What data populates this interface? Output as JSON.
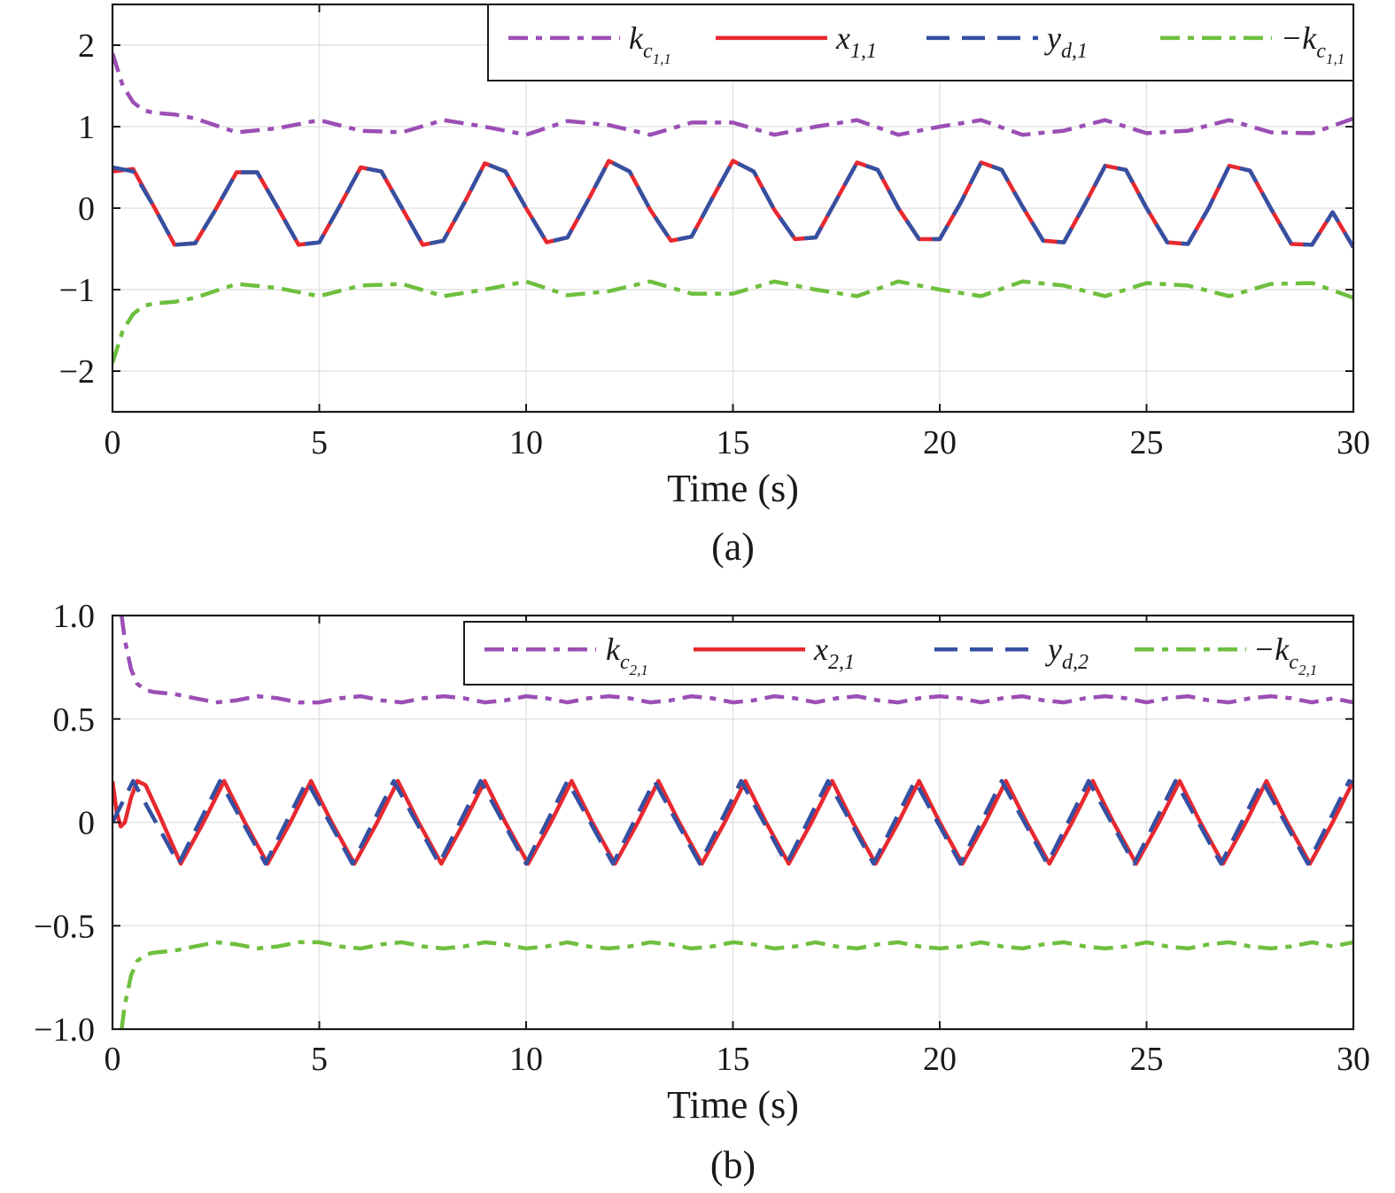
{
  "chart_data": [
    {
      "type": "line",
      "panel_label": "(a)",
      "xlabel": "Time (s)",
      "ylabel": "",
      "xlim": [
        0,
        30
      ],
      "ylim": [
        -2.5,
        2.5
      ],
      "xticks": [
        0,
        5,
        10,
        15,
        20,
        25,
        30
      ],
      "yticks": [
        -2,
        -1,
        0,
        1,
        2
      ],
      "xtick_labels": [
        "0",
        "5",
        "10",
        "15",
        "20",
        "25",
        "30"
      ],
      "ytick_labels": [
        "−2",
        "−1",
        "0",
        "1",
        "2"
      ],
      "grid": true,
      "legend_position": "top-right",
      "series": [
        {
          "name": "k_{c_{1,1}}",
          "legend": {
            "base": "k",
            "sub": "c",
            "subsub": "1,1",
            "prefix": ""
          },
          "color": "#9b4fb5",
          "style": "dashdot",
          "x": [
            0,
            0.25,
            0.5,
            0.75,
            1,
            1.5,
            2,
            3,
            4,
            5,
            6,
            7,
            8,
            9,
            10,
            11,
            12,
            13,
            14,
            15,
            16,
            17,
            18,
            19,
            20,
            21,
            22,
            23,
            24,
            25,
            26,
            27,
            28,
            29,
            30
          ],
          "y": [
            1.9,
            1.5,
            1.3,
            1.2,
            1.17,
            1.15,
            1.1,
            0.93,
            0.98,
            1.08,
            0.95,
            0.93,
            1.08,
            1.0,
            0.9,
            1.07,
            1.02,
            0.9,
            1.05,
            1.05,
            0.9,
            1.0,
            1.08,
            0.9,
            1.0,
            1.08,
            0.9,
            0.95,
            1.08,
            0.92,
            0.95,
            1.08,
            0.93,
            0.92,
            1.1
          ]
        },
        {
          "name": "x_{1,1}",
          "legend": {
            "base": "x",
            "sub": "1,1",
            "subsub": "",
            "prefix": ""
          },
          "color": "#e8282f",
          "style": "solid",
          "x": [
            0,
            0.5,
            1,
            1.5,
            2,
            2.5,
            3,
            3.5,
            4,
            4.5,
            5,
            5.5,
            6,
            6.5,
            7,
            7.5,
            8,
            8.5,
            9,
            9.5,
            10,
            10.5,
            11,
            11.5,
            12,
            12.5,
            13,
            13.5,
            14,
            14.5,
            15,
            15.5,
            16,
            16.5,
            17,
            17.5,
            18,
            18.5,
            19,
            19.5,
            20,
            20.5,
            21,
            21.5,
            22,
            22.5,
            23,
            23.5,
            24,
            24.5,
            25,
            25.5,
            26,
            26.5,
            27,
            27.5,
            28,
            28.5,
            29,
            29.5,
            30
          ],
          "y": [
            0.45,
            0.48,
            0.02,
            -0.45,
            -0.43,
            -0.01,
            0.44,
            0.44,
            0.0,
            -0.45,
            -0.42,
            0.03,
            0.5,
            0.45,
            0.0,
            -0.45,
            -0.4,
            0.06,
            0.55,
            0.45,
            0.0,
            -0.42,
            -0.36,
            0.1,
            0.58,
            0.45,
            -0.02,
            -0.4,
            -0.35,
            0.12,
            0.58,
            0.45,
            -0.02,
            -0.38,
            -0.36,
            0.1,
            0.56,
            0.47,
            0.0,
            -0.38,
            -0.38,
            0.06,
            0.56,
            0.47,
            0.02,
            -0.4,
            -0.42,
            0.04,
            0.52,
            0.47,
            0.0,
            -0.42,
            -0.44,
            0.0,
            0.52,
            0.46,
            0.0,
            -0.44,
            -0.45,
            -0.05,
            -0.48
          ]
        },
        {
          "name": "y_{d,1}",
          "legend": {
            "base": "y",
            "sub": "d,1",
            "subsub": "",
            "prefix": ""
          },
          "color": "#3450a2",
          "style": "dashed",
          "x": [
            0,
            0.5,
            1,
            1.5,
            2,
            2.5,
            3,
            3.5,
            4,
            4.5,
            5,
            5.5,
            6,
            6.5,
            7,
            7.5,
            8,
            8.5,
            9,
            9.5,
            10,
            10.5,
            11,
            11.5,
            12,
            12.5,
            13,
            13.5,
            14,
            14.5,
            15,
            15.5,
            16,
            16.5,
            17,
            17.5,
            18,
            18.5,
            19,
            19.5,
            20,
            20.5,
            21,
            21.5,
            22,
            22.5,
            23,
            23.5,
            24,
            24.5,
            25,
            25.5,
            26,
            26.5,
            27,
            27.5,
            28,
            28.5,
            29,
            29.5,
            30
          ],
          "y": [
            0.5,
            0.45,
            0.02,
            -0.45,
            -0.43,
            -0.01,
            0.44,
            0.44,
            0.0,
            -0.45,
            -0.42,
            0.03,
            0.5,
            0.45,
            0.0,
            -0.45,
            -0.4,
            0.06,
            0.55,
            0.45,
            0.0,
            -0.42,
            -0.36,
            0.1,
            0.58,
            0.45,
            -0.02,
            -0.4,
            -0.35,
            0.12,
            0.58,
            0.45,
            -0.02,
            -0.38,
            -0.36,
            0.1,
            0.56,
            0.47,
            0.0,
            -0.38,
            -0.38,
            0.06,
            0.56,
            0.47,
            0.02,
            -0.4,
            -0.42,
            0.04,
            0.52,
            0.47,
            0.0,
            -0.42,
            -0.44,
            0.0,
            0.52,
            0.46,
            0.0,
            -0.44,
            -0.45,
            -0.05,
            -0.48
          ]
        },
        {
          "name": "−k_{c_{1,1}}",
          "legend": {
            "base": "k",
            "sub": "c",
            "subsub": "1,1",
            "prefix": "−"
          },
          "color": "#6fbf3f",
          "style": "dashdot",
          "x": [
            0,
            0.25,
            0.5,
            0.75,
            1,
            1.5,
            2,
            3,
            4,
            5,
            6,
            7,
            8,
            9,
            10,
            11,
            12,
            13,
            14,
            15,
            16,
            17,
            18,
            19,
            20,
            21,
            22,
            23,
            24,
            25,
            26,
            27,
            28,
            29,
            30
          ],
          "y": [
            -1.9,
            -1.5,
            -1.3,
            -1.2,
            -1.17,
            -1.15,
            -1.1,
            -0.93,
            -0.98,
            -1.08,
            -0.95,
            -0.93,
            -1.08,
            -1.0,
            -0.9,
            -1.07,
            -1.02,
            -0.9,
            -1.05,
            -1.05,
            -0.9,
            -1.0,
            -1.08,
            -0.9,
            -1.0,
            -1.08,
            -0.9,
            -0.95,
            -1.08,
            -0.92,
            -0.95,
            -1.08,
            -0.93,
            -0.92,
            -1.1
          ]
        }
      ]
    },
    {
      "type": "line",
      "panel_label": "(b)",
      "xlabel": "Time (s)",
      "ylabel": "",
      "xlim": [
        0,
        30
      ],
      "ylim": [
        -1.0,
        1.0
      ],
      "xticks": [
        0,
        5,
        10,
        15,
        20,
        25,
        30
      ],
      "yticks": [
        -1.0,
        -0.5,
        0,
        0.5,
        1.0
      ],
      "xtick_labels": [
        "0",
        "5",
        "10",
        "15",
        "20",
        "25",
        "30"
      ],
      "ytick_labels": [
        "−1.0",
        "−0.5",
        "0",
        "0.5",
        "1.0"
      ],
      "grid": true,
      "legend_position": "top-right",
      "series": [
        {
          "name": "k_{c_{2,1}}",
          "legend": {
            "base": "k",
            "sub": "c",
            "subsub": "2,1",
            "prefix": ""
          },
          "color": "#9b4fb5",
          "style": "dashdot",
          "x": [
            0.22,
            0.3,
            0.45,
            0.6,
            0.8,
            1,
            1.5,
            2,
            2.5,
            3,
            3.5,
            4,
            4.5,
            5,
            5.5,
            6,
            6.5,
            7,
            7.5,
            8,
            8.5,
            9,
            9.5,
            10,
            10.5,
            11,
            11.5,
            12,
            12.5,
            13,
            13.5,
            14,
            14.5,
            15,
            15.5,
            16,
            16.5,
            17,
            17.5,
            18,
            18.5,
            19,
            19.5,
            20,
            20.5,
            21,
            21.5,
            22,
            22.5,
            23,
            23.5,
            24,
            24.5,
            25,
            25.5,
            26,
            26.5,
            27,
            27.5,
            28,
            28.5,
            29,
            29.5,
            30
          ],
          "y": [
            1.0,
            0.88,
            0.74,
            0.67,
            0.64,
            0.63,
            0.62,
            0.6,
            0.58,
            0.59,
            0.61,
            0.6,
            0.58,
            0.58,
            0.6,
            0.61,
            0.59,
            0.58,
            0.6,
            0.61,
            0.6,
            0.58,
            0.59,
            0.61,
            0.6,
            0.58,
            0.6,
            0.61,
            0.6,
            0.58,
            0.59,
            0.61,
            0.6,
            0.58,
            0.59,
            0.61,
            0.6,
            0.58,
            0.6,
            0.61,
            0.59,
            0.58,
            0.6,
            0.61,
            0.6,
            0.58,
            0.6,
            0.61,
            0.59,
            0.58,
            0.6,
            0.61,
            0.6,
            0.58,
            0.6,
            0.61,
            0.59,
            0.58,
            0.6,
            0.61,
            0.6,
            0.58,
            0.6,
            0.58
          ]
        },
        {
          "name": "x_{2,1}",
          "legend": {
            "base": "x",
            "sub": "2,1",
            "subsub": "",
            "prefix": ""
          },
          "color": "#e8282f",
          "style": "solid",
          "x": [
            0,
            0.1,
            0.2,
            0.3,
            0.45,
            0.6,
            0.8,
            1.1,
            1.65,
            2.2,
            2.7,
            3.2,
            3.75,
            4.3,
            4.8,
            5.3,
            5.85,
            6.4,
            6.9,
            7.4,
            7.95,
            8.5,
            9.0,
            9.5,
            10.05,
            10.6,
            11.1,
            11.6,
            12.15,
            12.7,
            13.2,
            13.7,
            14.25,
            14.8,
            15.3,
            15.8,
            16.35,
            16.9,
            17.4,
            17.9,
            18.45,
            19.0,
            19.5,
            20.0,
            20.55,
            21.1,
            21.6,
            22.1,
            22.65,
            23.2,
            23.7,
            24.2,
            24.75,
            25.3,
            25.8,
            26.3,
            26.85,
            27.4,
            27.9,
            28.4,
            28.95,
            29.5,
            30
          ],
          "y": [
            0.2,
            0.05,
            -0.02,
            0.0,
            0.12,
            0.2,
            0.18,
            0.05,
            -0.2,
            0.0,
            0.2,
            0.0,
            -0.2,
            0.0,
            0.2,
            0.0,
            -0.2,
            0.0,
            0.2,
            0.0,
            -0.2,
            0.0,
            0.2,
            0.0,
            -0.2,
            0.0,
            0.2,
            0.0,
            -0.2,
            0.0,
            0.2,
            0.0,
            -0.2,
            0.0,
            0.2,
            0.0,
            -0.2,
            0.0,
            0.2,
            0.0,
            -0.2,
            0.0,
            0.2,
            0.0,
            -0.2,
            0.0,
            0.2,
            0.0,
            -0.2,
            0.0,
            0.2,
            0.0,
            -0.2,
            0.0,
            0.2,
            0.0,
            -0.2,
            0.0,
            0.2,
            0.0,
            -0.2,
            0.0,
            0.2
          ]
        },
        {
          "name": "y_{d,2}",
          "legend": {
            "base": "y",
            "sub": "d,2",
            "subsub": "",
            "prefix": ""
          },
          "color": "#3450a2",
          "style": "dashed",
          "x": [
            0,
            0.5,
            1.05,
            1.6,
            2.1,
            2.6,
            3.15,
            3.7,
            4.2,
            4.7,
            5.25,
            5.8,
            6.3,
            6.8,
            7.35,
            7.9,
            8.4,
            8.9,
            9.45,
            10.0,
            10.5,
            11.0,
            11.55,
            12.1,
            12.6,
            13.1,
            13.65,
            14.2,
            14.7,
            15.2,
            15.75,
            16.3,
            16.8,
            17.3,
            17.85,
            18.4,
            18.9,
            19.4,
            19.95,
            20.5,
            21.0,
            21.5,
            22.05,
            22.6,
            23.1,
            23.6,
            24.15,
            24.7,
            25.2,
            25.7,
            26.25,
            26.8,
            27.3,
            27.8,
            28.35,
            28.9,
            29.4,
            29.9,
            30
          ],
          "y": [
            0.0,
            0.2,
            0.0,
            -0.2,
            0.0,
            0.2,
            0.0,
            -0.2,
            0.0,
            0.2,
            0.0,
            -0.2,
            0.0,
            0.2,
            0.0,
            -0.2,
            0.0,
            0.2,
            0.0,
            -0.2,
            0.0,
            0.2,
            0.0,
            -0.2,
            0.0,
            0.2,
            0.0,
            -0.2,
            0.0,
            0.2,
            0.0,
            -0.2,
            0.0,
            0.2,
            0.0,
            -0.2,
            0.0,
            0.2,
            0.0,
            -0.2,
            0.0,
            0.2,
            0.0,
            -0.2,
            0.0,
            0.2,
            0.0,
            -0.2,
            0.0,
            0.2,
            0.0,
            -0.2,
            0.0,
            0.2,
            0.0,
            -0.2,
            0.0,
            0.2,
            0.19
          ]
        },
        {
          "name": "−k_{c_{2,1}}",
          "legend": {
            "base": "k",
            "sub": "c",
            "subsub": "2,1",
            "prefix": "−"
          },
          "color": "#6fbf3f",
          "style": "dashdot",
          "x": [
            0.22,
            0.3,
            0.45,
            0.6,
            0.8,
            1,
            1.5,
            2,
            2.5,
            3,
            3.5,
            4,
            4.5,
            5,
            5.5,
            6,
            6.5,
            7,
            7.5,
            8,
            8.5,
            9,
            9.5,
            10,
            10.5,
            11,
            11.5,
            12,
            12.5,
            13,
            13.5,
            14,
            14.5,
            15,
            15.5,
            16,
            16.5,
            17,
            17.5,
            18,
            18.5,
            19,
            19.5,
            20,
            20.5,
            21,
            21.5,
            22,
            22.5,
            23,
            23.5,
            24,
            24.5,
            25,
            25.5,
            26,
            26.5,
            27,
            27.5,
            28,
            28.5,
            29,
            29.5,
            30
          ],
          "y": [
            -1.0,
            -0.88,
            -0.74,
            -0.67,
            -0.64,
            -0.63,
            -0.62,
            -0.6,
            -0.58,
            -0.59,
            -0.61,
            -0.6,
            -0.58,
            -0.58,
            -0.6,
            -0.61,
            -0.59,
            -0.58,
            -0.6,
            -0.61,
            -0.6,
            -0.58,
            -0.59,
            -0.61,
            -0.6,
            -0.58,
            -0.6,
            -0.61,
            -0.6,
            -0.58,
            -0.59,
            -0.61,
            -0.6,
            -0.58,
            -0.59,
            -0.61,
            -0.6,
            -0.58,
            -0.6,
            -0.61,
            -0.59,
            -0.58,
            -0.6,
            -0.61,
            -0.6,
            -0.58,
            -0.6,
            -0.61,
            -0.59,
            -0.58,
            -0.6,
            -0.61,
            -0.6,
            -0.58,
            -0.6,
            -0.61,
            -0.59,
            -0.58,
            -0.6,
            -0.61,
            -0.6,
            -0.58,
            -0.6,
            -0.58
          ]
        }
      ]
    }
  ]
}
